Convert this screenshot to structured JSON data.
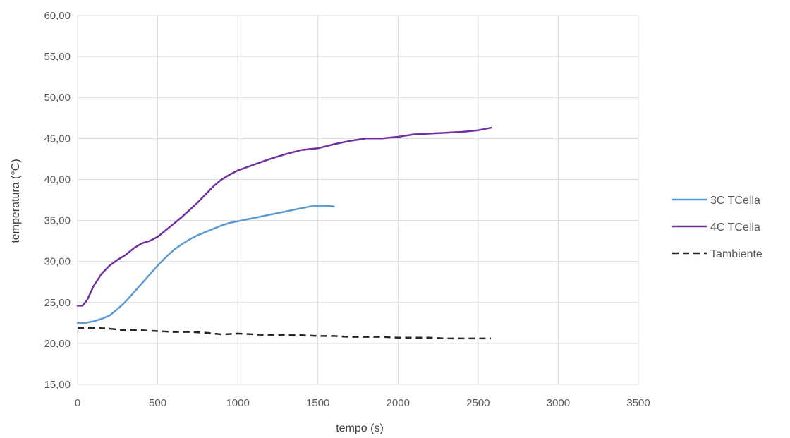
{
  "chart_data": {
    "type": "line",
    "xlabel": "tempo (s)",
    "ylabel": "temperatura (°C)",
    "xlim": [
      0,
      3500
    ],
    "ylim": [
      15,
      60
    ],
    "x_ticks": [
      "0",
      "500",
      "1000",
      "1500",
      "2000",
      "2500",
      "3000",
      "3500"
    ],
    "y_ticks": [
      "15,00",
      "20,00",
      "25,00",
      "30,00",
      "35,00",
      "40,00",
      "45,00",
      "50,00",
      "55,00",
      "60,00"
    ],
    "grid": "vertical and horizontal",
    "legend_position": "right",
    "series": [
      {
        "name": "3C TCella",
        "color": "#5b9bd5",
        "dash": "solid",
        "x": [
          0,
          50,
          100,
          150,
          200,
          250,
          300,
          350,
          400,
          450,
          500,
          550,
          600,
          650,
          700,
          750,
          800,
          850,
          900,
          950,
          1000,
          1050,
          1100,
          1150,
          1200,
          1250,
          1300,
          1350,
          1400,
          1450,
          1500,
          1550,
          1600
        ],
        "y": [
          22.5,
          22.5,
          22.7,
          23.0,
          23.4,
          24.2,
          25.1,
          26.2,
          27.3,
          28.4,
          29.5,
          30.5,
          31.4,
          32.1,
          32.7,
          33.2,
          33.6,
          34.0,
          34.4,
          34.7,
          34.9,
          35.1,
          35.3,
          35.5,
          35.7,
          35.9,
          36.1,
          36.3,
          36.5,
          36.7,
          36.8,
          36.8,
          36.7
        ]
      },
      {
        "name": "4C TCella",
        "color": "#7030a0",
        "dash": "solid",
        "x": [
          0,
          30,
          60,
          100,
          150,
          200,
          250,
          300,
          350,
          400,
          450,
          500,
          550,
          600,
          650,
          700,
          750,
          800,
          850,
          900,
          950,
          1000,
          1100,
          1200,
          1300,
          1400,
          1500,
          1600,
          1700,
          1800,
          1900,
          2000,
          2100,
          2200,
          2300,
          2400,
          2500,
          2580
        ],
        "y": [
          24.6,
          24.6,
          25.3,
          27.0,
          28.5,
          29.5,
          30.2,
          30.8,
          31.6,
          32.2,
          32.5,
          33.0,
          33.8,
          34.6,
          35.4,
          36.3,
          37.2,
          38.2,
          39.2,
          40.0,
          40.6,
          41.1,
          41.8,
          42.5,
          43.1,
          43.6,
          43.8,
          44.3,
          44.7,
          45.0,
          45.0,
          45.2,
          45.5,
          45.6,
          45.7,
          45.8,
          46.0,
          46.3
        ]
      },
      {
        "name": "Tambiente",
        "color": "#262626",
        "dash": "dashed",
        "x": [
          0,
          100,
          200,
          300,
          400,
          500,
          600,
          700,
          800,
          900,
          1000,
          1100,
          1200,
          1300,
          1400,
          1500,
          1600,
          1700,
          1800,
          1900,
          2000,
          2100,
          2200,
          2300,
          2400,
          2500,
          2580
        ],
        "y": [
          21.9,
          21.9,
          21.8,
          21.6,
          21.6,
          21.5,
          21.4,
          21.4,
          21.3,
          21.1,
          21.2,
          21.1,
          21.0,
          21.0,
          21.0,
          20.9,
          20.9,
          20.8,
          20.8,
          20.8,
          20.7,
          20.7,
          20.7,
          20.6,
          20.6,
          20.6,
          20.6
        ]
      }
    ]
  }
}
